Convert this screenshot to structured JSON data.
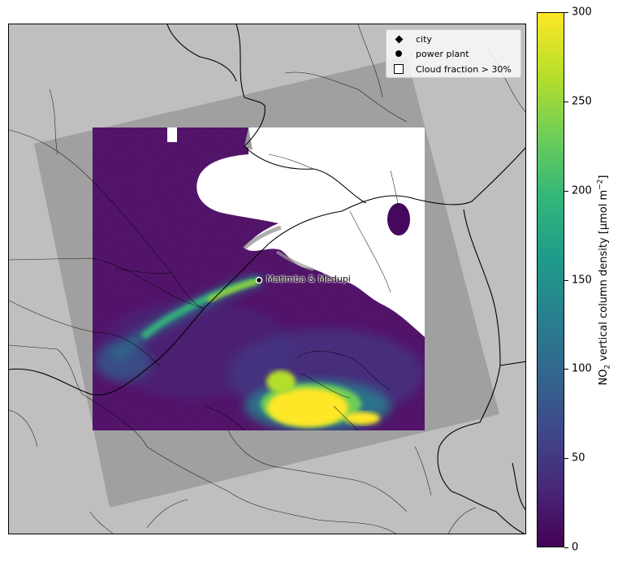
{
  "legend": {
    "items": [
      {
        "label": "city",
        "symbol": "diamond"
      },
      {
        "label": "power plant",
        "symbol": "circle"
      },
      {
        "label": "Cloud fraction > 30%",
        "symbol": "square"
      }
    ]
  },
  "annotation": {
    "power_plant_name": "Matimba & Medupi"
  },
  "colorbar": {
    "ticks": [
      "0",
      "50",
      "100",
      "150",
      "200",
      "250",
      "300"
    ],
    "tick_values": [
      0,
      50,
      100,
      150,
      200,
      250,
      300
    ],
    "vmin": 0,
    "vmax": 300,
    "title_main": "NO",
    "title_sub": "2",
    "title_rest": " vertical column density [µmol m",
    "title_sup": "−2",
    "title_end": "]",
    "colormap": "viridis"
  },
  "colors": {
    "land": "#bfbfbf",
    "swath": "#a0a0a0",
    "cloud": "#ffffff",
    "low_no2": "#44095b",
    "plume_high": "#fde725"
  }
}
